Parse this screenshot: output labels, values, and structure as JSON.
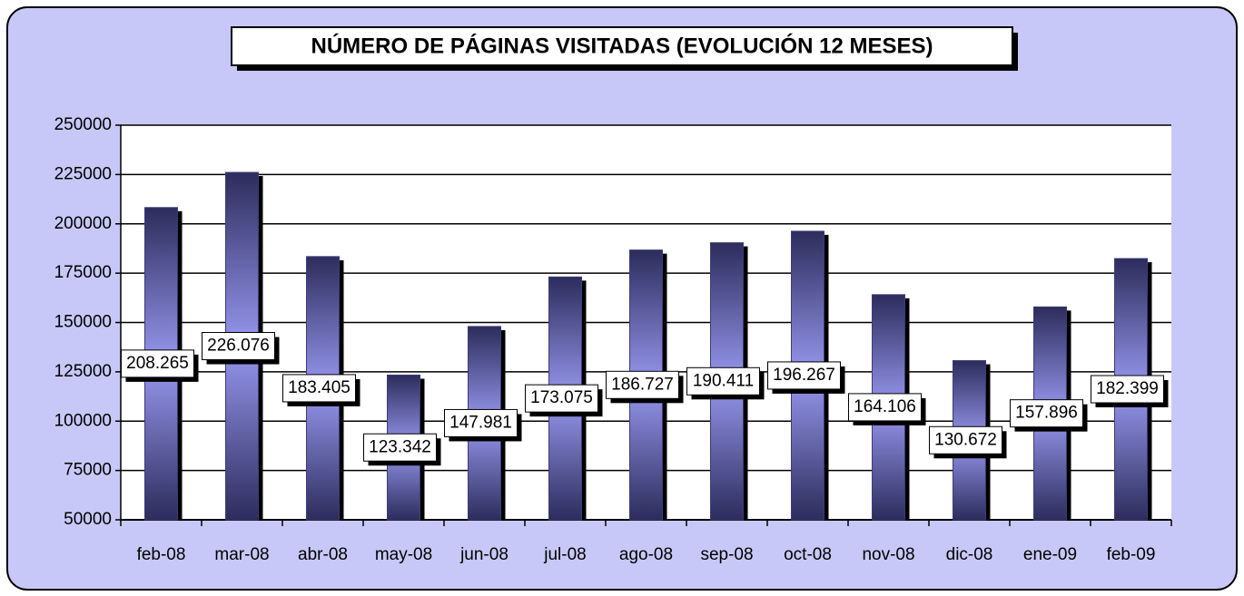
{
  "chart_data": {
    "type": "bar",
    "title": "NÚMERO DE PÁGINAS VISITADAS  (EVOLUCIÓN 12 MESES)",
    "categories": [
      "feb-08",
      "mar-08",
      "abr-08",
      "may-08",
      "jun-08",
      "jul-08",
      "ago-08",
      "sep-08",
      "oct-08",
      "nov-08",
      "dic-08",
      "ene-09",
      "feb-09"
    ],
    "values": [
      208265,
      226076,
      183405,
      123342,
      147981,
      173075,
      186727,
      190411,
      196267,
      164106,
      130672,
      157896,
      182399
    ],
    "value_labels": [
      "208.265",
      "226.076",
      "183.405",
      "123.342",
      "147.981",
      "173.075",
      "186.727",
      "190.411",
      "196.267",
      "164.106",
      "130.672",
      "157.896",
      "182.399"
    ],
    "color": "#3c3c78",
    "ylim": [
      50000,
      250000
    ],
    "yticks": [
      50000,
      75000,
      100000,
      125000,
      150000,
      175000,
      200000,
      225000,
      250000
    ],
    "grid": true
  }
}
